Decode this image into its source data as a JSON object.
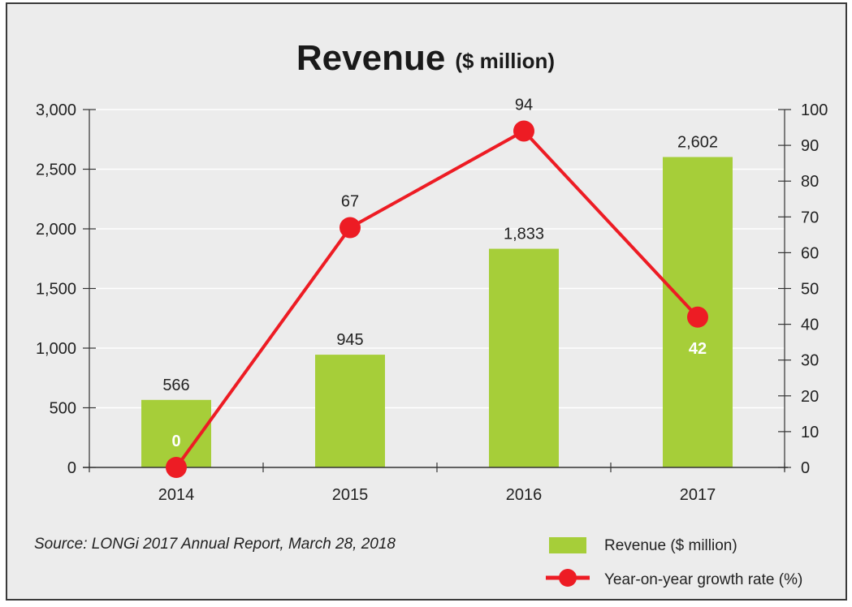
{
  "chart_data": {
    "type": "bar",
    "title": "Revenue",
    "subtitle": "($ million)",
    "categories": [
      "2014",
      "2015",
      "2016",
      "2017"
    ],
    "series": [
      {
        "name": "Revenue ($ million)",
        "type": "bar",
        "axis": "left",
        "values": [
          566,
          945,
          1833,
          2602
        ],
        "labels": [
          "566",
          "945",
          "1,833",
          "2,602"
        ],
        "color": "#a6ce39"
      },
      {
        "name": "Year-on-year growth rate (%)",
        "type": "line",
        "axis": "right",
        "values": [
          0,
          67,
          94,
          42
        ],
        "labels": [
          "0",
          "67",
          "94",
          "42"
        ],
        "color": "#ed1c24"
      }
    ],
    "y_left": {
      "range": [
        0,
        3000
      ],
      "ticks": [
        0,
        500,
        1000,
        1500,
        2000,
        2500,
        3000
      ],
      "tick_labels": [
        "0",
        "500",
        "1,000",
        "1,500",
        "2,000",
        "2,500",
        "3,000"
      ]
    },
    "y_right": {
      "range": [
        0,
        100
      ],
      "ticks": [
        0,
        10,
        20,
        30,
        40,
        50,
        60,
        70,
        80,
        90,
        100
      ],
      "tick_labels": [
        "0",
        "10",
        "20",
        "30",
        "40",
        "50",
        "60",
        "70",
        "80",
        "90",
        "100"
      ]
    },
    "xlabel": "",
    "ylabel": "",
    "grid": true,
    "legend": {
      "placement": "bottom-right",
      "entries": [
        "Revenue ($ million)",
        "Year-on-year growth rate (%)"
      ]
    },
    "source": "Source: LONGi 2017 Annual Report, March 28, 2018"
  },
  "colors": {
    "background": "#ececec",
    "bar": "#a6ce39",
    "line": "#ed1c24",
    "grid": "#ffffff",
    "axis": "#333333"
  }
}
